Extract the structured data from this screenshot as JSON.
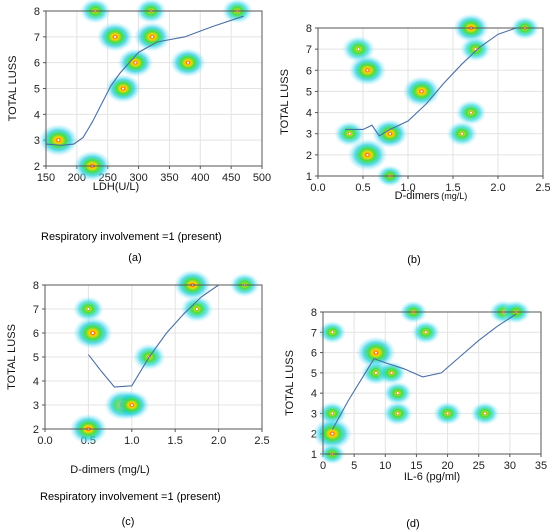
{
  "chart_data": [
    {
      "type": "scatter",
      "panel_label": "(a)",
      "xlabel": "LDH(U/L)",
      "ylabel": "TOTAL LUSS",
      "note": "Respiratory involvement =1 (present)",
      "xlim": [
        150,
        500
      ],
      "ylim": [
        2,
        8
      ],
      "xticks": [
        "150",
        "200",
        "250",
        "300",
        "350",
        "400",
        "450",
        "500"
      ],
      "yticks": [
        "2",
        "3",
        "4",
        "5",
        "6",
        "7",
        "8"
      ],
      "grid": true,
      "points": [
        {
          "x": 230,
          "y": 8,
          "d": 0.6
        },
        {
          "x": 320,
          "y": 8,
          "d": 0.6
        },
        {
          "x": 460,
          "y": 8,
          "d": 0.6
        },
        {
          "x": 262,
          "y": 7,
          "d": 0.85
        },
        {
          "x": 322,
          "y": 7,
          "d": 0.85
        },
        {
          "x": 295,
          "y": 6,
          "d": 0.8
        },
        {
          "x": 380,
          "y": 6,
          "d": 0.8
        },
        {
          "x": 275,
          "y": 5,
          "d": 0.8
        },
        {
          "x": 170,
          "y": 3,
          "d": 1.0
        },
        {
          "x": 225,
          "y": 2,
          "d": 0.9
        }
      ],
      "fit_line": {
        "x": [
          150,
          175,
          195,
          210,
          225,
          240,
          255,
          270,
          285,
          300,
          330,
          375,
          420,
          470
        ],
        "y": [
          2.85,
          2.8,
          2.85,
          3.1,
          3.7,
          4.4,
          5.1,
          5.6,
          6.0,
          6.4,
          6.8,
          7.0,
          7.4,
          7.8
        ]
      }
    },
    {
      "type": "scatter",
      "panel_label": "(b)",
      "xlabel": "D-dimers",
      "xlabel_unit": "(mg/L)",
      "ylabel": "TOTAL LUSS",
      "note": "",
      "xlim": [
        0,
        2.5
      ],
      "ylim": [
        1,
        8
      ],
      "xticks": [
        "0.0",
        "0.5",
        "1.0",
        "1.5",
        "2.0",
        "2.5"
      ],
      "yticks": [
        "1",
        "2",
        "3",
        "4",
        "5",
        "6",
        "7",
        "8"
      ],
      "grid": true,
      "points": [
        {
          "x": 1.7,
          "y": 8,
          "d": 0.8
        },
        {
          "x": 2.3,
          "y": 8,
          "d": 0.5
        },
        {
          "x": 0.45,
          "y": 7,
          "d": 0.7
        },
        {
          "x": 1.75,
          "y": 7,
          "d": 0.6
        },
        {
          "x": 0.55,
          "y": 6,
          "d": 0.9
        },
        {
          "x": 1.15,
          "y": 5,
          "d": 0.9
        },
        {
          "x": 1.7,
          "y": 4,
          "d": 0.6
        },
        {
          "x": 0.35,
          "y": 3,
          "d": 0.6
        },
        {
          "x": 0.8,
          "y": 3,
          "d": 0.8
        },
        {
          "x": 1.6,
          "y": 3,
          "d": 0.6
        },
        {
          "x": 0.55,
          "y": 2,
          "d": 1.0
        },
        {
          "x": 0.8,
          "y": 1,
          "d": 0.4
        }
      ],
      "fit_line": {
        "x": [
          0.3,
          0.5,
          0.6,
          0.68,
          0.8,
          1.0,
          1.2,
          1.4,
          1.6,
          1.8,
          2.0,
          2.2
        ],
        "y": [
          3.2,
          3.2,
          3.4,
          2.9,
          3.2,
          3.6,
          4.4,
          5.4,
          6.3,
          7.1,
          7.7,
          8.0
        ]
      }
    },
    {
      "type": "scatter",
      "panel_label": "(c)",
      "xlabel": "D-dimers (mg/L)",
      "ylabel": "TOTAL LUSS",
      "note": "Respiratory involvement =1 (present)",
      "xlim": [
        0,
        2.5
      ],
      "ylim": [
        2,
        8
      ],
      "xticks": [
        "0.0",
        "0.5",
        "1.0",
        "1.5",
        "2.0",
        "2.5"
      ],
      "yticks": [
        "2",
        "3",
        "4",
        "5",
        "6",
        "7",
        "8"
      ],
      "grid": true,
      "points": [
        {
          "x": 1.7,
          "y": 8,
          "d": 0.9
        },
        {
          "x": 2.3,
          "y": 8,
          "d": 0.55
        },
        {
          "x": 0.5,
          "y": 7,
          "d": 0.6
        },
        {
          "x": 1.75,
          "y": 7,
          "d": 0.7
        },
        {
          "x": 0.55,
          "y": 6,
          "d": 1.0
        },
        {
          "x": 1.2,
          "y": 5,
          "d": 0.7
        },
        {
          "x": 0.9,
          "y": 3,
          "d": 0.9
        },
        {
          "x": 1.0,
          "y": 3,
          "d": 0.8
        },
        {
          "x": 0.5,
          "y": 2,
          "d": 0.9
        }
      ],
      "fit_line": {
        "x": [
          0.5,
          0.65,
          0.8,
          1.0,
          1.2,
          1.4,
          1.6,
          1.8,
          2.0
        ],
        "y": [
          5.1,
          4.4,
          3.75,
          3.8,
          5.0,
          6.0,
          6.8,
          7.5,
          8.0
        ]
      }
    },
    {
      "type": "scatter",
      "panel_label": "(d)",
      "xlabel": "IL-6 (pg/ml)",
      "ylabel": "TOTAL LUSS",
      "note": "",
      "xlim": [
        0,
        35
      ],
      "ylim": [
        1,
        8
      ],
      "xticks": [
        "0",
        "5",
        "10",
        "15",
        "20",
        "25",
        "30",
        "35"
      ],
      "yticks": [
        "1",
        "2",
        "3",
        "4",
        "5",
        "6",
        "7",
        "8"
      ],
      "grid": true,
      "points": [
        {
          "x": 14.5,
          "y": 8,
          "d": 0.45
        },
        {
          "x": 29,
          "y": 8,
          "d": 0.5
        },
        {
          "x": 31,
          "y": 8,
          "d": 0.5
        },
        {
          "x": 1.5,
          "y": 7,
          "d": 0.45
        },
        {
          "x": 16.5,
          "y": 7,
          "d": 0.5
        },
        {
          "x": 8.5,
          "y": 6,
          "d": 1.0
        },
        {
          "x": 8.5,
          "y": 5,
          "d": 0.55
        },
        {
          "x": 11,
          "y": 5,
          "d": 0.5
        },
        {
          "x": 12,
          "y": 4,
          "d": 0.5
        },
        {
          "x": 1.5,
          "y": 3,
          "d": 0.5
        },
        {
          "x": 12,
          "y": 3,
          "d": 0.55
        },
        {
          "x": 20,
          "y": 3,
          "d": 0.5
        },
        {
          "x": 26,
          "y": 3,
          "d": 0.5
        },
        {
          "x": 1.5,
          "y": 2,
          "d": 1.0
        },
        {
          "x": 1.5,
          "y": 1,
          "d": 0.35
        }
      ],
      "fit_line": {
        "x": [
          1.5,
          4,
          6,
          8.2,
          10,
          13,
          16,
          19,
          22,
          25,
          28,
          31
        ],
        "y": [
          2.2,
          3.6,
          4.6,
          5.7,
          5.5,
          5.2,
          4.8,
          5.0,
          5.8,
          6.6,
          7.3,
          7.9
        ]
      }
    }
  ]
}
